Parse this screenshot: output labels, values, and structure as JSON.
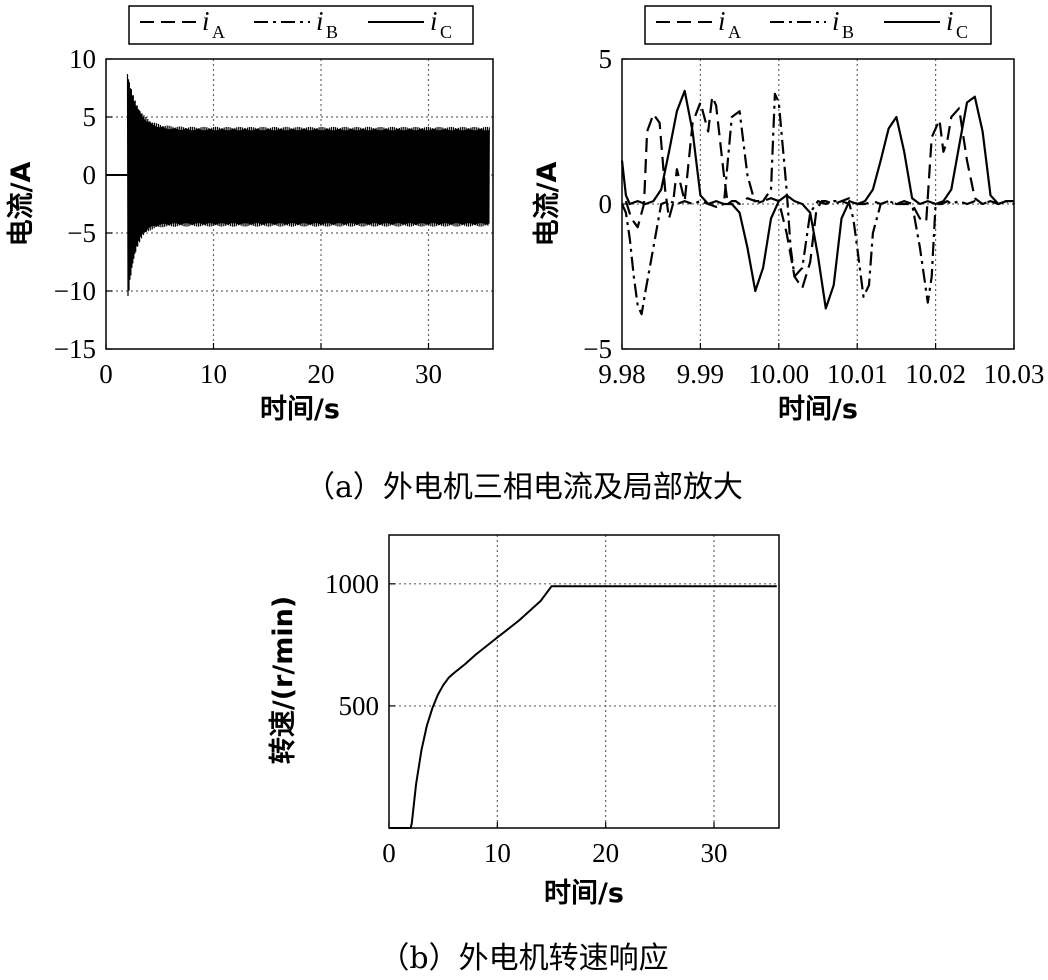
{
  "chart_data": [
    {
      "type": "line",
      "xlabel": "时间/s",
      "ylabel": "电流/A",
      "xlim": [
        0,
        36
      ],
      "ylim": [
        -15,
        10
      ],
      "xticks": [
        "0",
        "10",
        "20",
        "30"
      ],
      "yticks": [
        "10",
        "5",
        "0",
        "−5",
        "−10",
        "−15"
      ],
      "grid": true,
      "legend": {
        "position": "top",
        "entries": [
          {
            "symbol": "i",
            "sub": "A",
            "style": "dashed"
          },
          {
            "symbol": "i",
            "sub": "B",
            "style": "dash-dot"
          },
          {
            "symbol": "i",
            "sub": "C",
            "style": "solid"
          }
        ]
      },
      "description_data": {
        "t_start": 2.0,
        "peak_max": 8.7,
        "peak_min": -11.0,
        "steady_envelope": [
          -4.3,
          4.0
        ]
      }
    },
    {
      "type": "line",
      "xlabel": "时间/s",
      "ylabel": "电流/A",
      "xlim": [
        9.98,
        10.03
      ],
      "ylim": [
        -5,
        5
      ],
      "xticks": [
        "9.98",
        "9.99",
        "10.00",
        "10.01",
        "10.02",
        "10.03"
      ],
      "yticks": [
        "5",
        "0",
        "−5"
      ],
      "grid": true,
      "legend": {
        "position": "top",
        "entries": [
          {
            "symbol": "i",
            "sub": "A",
            "style": "dashed"
          },
          {
            "symbol": "i",
            "sub": "B",
            "style": "dash-dot"
          },
          {
            "symbol": "i",
            "sub": "C",
            "style": "solid"
          }
        ]
      },
      "series": [
        {
          "name": "iA",
          "style": "dashed",
          "x": [
            9.9805,
            9.9812,
            9.982,
            9.9828,
            9.9832,
            9.984,
            9.9848,
            9.9855,
            9.986,
            9.9865,
            9.987,
            9.988,
            9.989,
            9.99,
            9.991,
            9.9915,
            9.992,
            9.993,
            9.9935,
            9.994,
            9.9945,
            9.995,
            9.996,
            9.997,
            9.998,
            9.999,
            10.0,
            10.001,
            10.002,
            10.003,
            10.004,
            10.0048,
            10.0055,
            10.006,
            10.007,
            10.008,
            10.009,
            10.01,
            10.011,
            10.012,
            10.013,
            10.014,
            10.015,
            10.016,
            10.017,
            10.018,
            10.0188,
            10.0195,
            10.0205,
            10.021,
            10.0215,
            10.022,
            10.023,
            10.024,
            10.025,
            10.026,
            10.027,
            10.028,
            10.029,
            10.03
          ],
          "y": [
            0.1,
            -0.5,
            -0.8,
            0.0,
            2.5,
            3.1,
            2.8,
            0.5,
            -0.5,
            0.0,
            1.2,
            0.1,
            2.8,
            3.5,
            2.5,
            3.7,
            3.4,
            1.0,
            0.0,
            0.1,
            0.1,
            0.0,
            0.2,
            0.1,
            0.1,
            0.2,
            0.1,
            -1.0,
            -2.5,
            -2.9,
            -2.0,
            -0.2,
            0.1,
            0.1,
            0.0,
            0.1,
            0.2,
            0.0,
            0.0,
            0.1,
            0.0,
            0.1,
            0.0,
            0.0,
            0.0,
            -0.5,
            -0.6,
            2.3,
            2.9,
            1.8,
            2.2,
            3.0,
            3.3,
            1.5,
            0.2,
            0.0,
            0.1,
            0.0,
            0.1,
            0.1
          ]
        },
        {
          "name": "iB",
          "style": "dash-dot",
          "x": [
            9.98,
            9.9805,
            9.981,
            9.9815,
            9.982,
            9.9825,
            9.983,
            9.984,
            9.985,
            9.986,
            9.987,
            9.988,
            9.989,
            9.99,
            9.991,
            9.992,
            9.993,
            9.994,
            9.995,
            9.996,
            9.997,
            9.998,
            9.999,
            9.9995,
            10.0,
            10.0005,
            10.001,
            10.0015,
            10.002,
            10.003,
            10.004,
            10.005,
            10.006,
            10.007,
            10.008,
            10.009,
            10.0095,
            10.01,
            10.0108,
            10.0115,
            10.012,
            10.013,
            10.014,
            10.015,
            10.016,
            10.017,
            10.018,
            10.019,
            10.0195,
            10.02,
            10.0208,
            10.0215,
            10.022,
            10.023,
            10.024,
            10.025,
            10.026,
            10.027,
            10.028,
            10.029,
            10.03
          ],
          "y": [
            0.0,
            -0.3,
            -1.2,
            -2.5,
            -3.5,
            -3.8,
            -3.0,
            -1.5,
            0.0,
            0.1,
            0.0,
            0.1,
            0.0,
            0.1,
            0.0,
            -0.1,
            0.0,
            3.0,
            3.2,
            1.0,
            0.0,
            0.1,
            0.5,
            3.8,
            3.5,
            2.0,
            0.5,
            -1.5,
            -2.5,
            -2.2,
            -0.3,
            0.1,
            0.0,
            0.1,
            0.1,
            0.0,
            -0.5,
            -1.5,
            -3.2,
            -2.8,
            -1.0,
            0.0,
            0.1,
            0.0,
            0.1,
            0.0,
            -1.5,
            -3.4,
            -2.5,
            0.0,
            0.0,
            0.1,
            0.0,
            0.1,
            0.0,
            0.1,
            0.0,
            0.1,
            0.0,
            0.1,
            0.0
          ]
        },
        {
          "name": "iC",
          "style": "solid",
          "x": [
            9.98,
            9.9805,
            9.981,
            9.982,
            9.983,
            9.984,
            9.985,
            9.986,
            9.987,
            9.988,
            9.989,
            9.99,
            9.991,
            9.992,
            9.993,
            9.994,
            9.995,
            9.996,
            9.997,
            9.998,
            9.999,
            10.0,
            10.001,
            10.002,
            10.003,
            10.004,
            10.005,
            10.006,
            10.007,
            10.008,
            10.009,
            10.01,
            10.011,
            10.012,
            10.013,
            10.014,
            10.015,
            10.016,
            10.017,
            10.018,
            10.019,
            10.02,
            10.021,
            10.022,
            10.023,
            10.024,
            10.025,
            10.026,
            10.027,
            10.028,
            10.029,
            10.03
          ],
          "y": [
            1.5,
            0.3,
            0.0,
            0.1,
            0.0,
            0.1,
            0.5,
            1.8,
            3.2,
            3.9,
            2.5,
            0.3,
            0.0,
            0.1,
            0.0,
            0.0,
            -0.3,
            -1.5,
            -3.0,
            -2.2,
            -0.5,
            0.1,
            0.3,
            0.1,
            0.0,
            -0.3,
            -1.8,
            -3.6,
            -2.8,
            -0.5,
            0.1,
            0.0,
            0.1,
            0.5,
            1.5,
            2.6,
            3.0,
            1.8,
            0.2,
            0.0,
            0.1,
            0.0,
            0.1,
            0.5,
            2.0,
            3.5,
            3.7,
            2.5,
            0.3,
            0.0,
            0.1,
            0.1
          ]
        }
      ]
    },
    {
      "type": "line",
      "xlabel": "时间/s",
      "ylabel": "转速/(r/min)",
      "xlim": [
        0,
        36
      ],
      "ylim": [
        0,
        1200
      ],
      "xticks": [
        "0",
        "10",
        "20",
        "30"
      ],
      "yticks": [
        "1000",
        "500"
      ],
      "grid": true,
      "series": [
        {
          "name": "speed",
          "x": [
            0,
            2.0,
            2.1,
            2.5,
            3.0,
            3.5,
            4.0,
            4.5,
            5.0,
            5.5,
            6.0,
            7.0,
            8.0,
            10.0,
            12.0,
            14.0,
            15.0,
            20.0,
            25.0,
            30.0,
            35.8
          ],
          "y": [
            0,
            0,
            20,
            180,
            320,
            420,
            490,
            545,
            585,
            615,
            635,
            670,
            710,
            780,
            850,
            930,
            990,
            990,
            990,
            990,
            990
          ]
        }
      ]
    }
  ],
  "captions": {
    "a": "（a）外电机三相电流及局部放大",
    "b": "（b）外电机转速响应"
  }
}
